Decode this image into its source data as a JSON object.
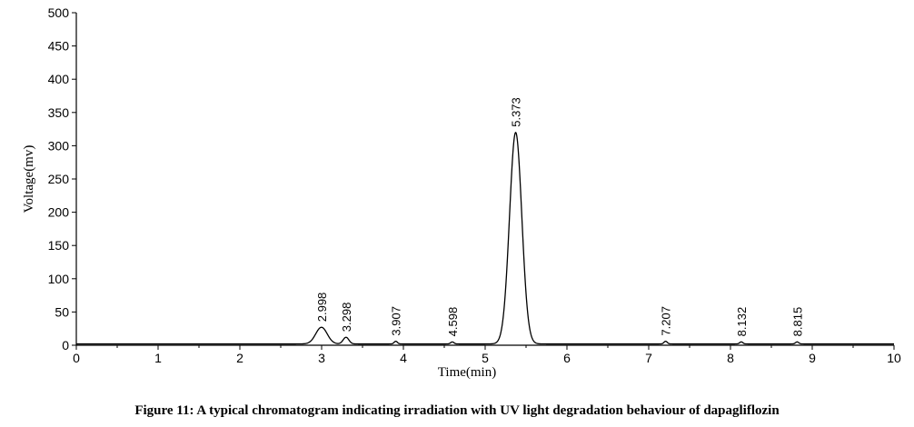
{
  "caption": "Figure 11: A typical chromatogram indicating irradiation with UV light degradation behaviour of dapagliflozin",
  "chart_data": {
    "type": "line",
    "xlabel": "Time(min)",
    "ylabel": "Voltage(mv)",
    "xlim": [
      0,
      10
    ],
    "ylim": [
      0,
      500
    ],
    "x_ticks": [
      "0",
      "1",
      "2",
      "3",
      "4",
      "5",
      "6",
      "7",
      "8",
      "9",
      "10"
    ],
    "y_ticks": [
      "0",
      "50",
      "100",
      "150",
      "200",
      "250",
      "300",
      "350",
      "400",
      "450",
      "500"
    ],
    "grid": false,
    "baseline_mv": 2,
    "peaks": [
      {
        "label": "2.998",
        "rt": 2.998,
        "height": 25,
        "width": 0.07
      },
      {
        "label": "3.298",
        "rt": 3.298,
        "height": 10,
        "width": 0.035
      },
      {
        "label": "3.907",
        "rt": 3.907,
        "height": 4,
        "width": 0.02
      },
      {
        "label": "4.598",
        "rt": 4.598,
        "height": 3,
        "width": 0.02
      },
      {
        "label": "5.373",
        "rt": 5.373,
        "height": 318,
        "width": 0.075
      },
      {
        "label": "7.207",
        "rt": 7.207,
        "height": 4,
        "width": 0.02
      },
      {
        "label": "8.132",
        "rt": 8.132,
        "height": 3,
        "width": 0.02
      },
      {
        "label": "8.815",
        "rt": 8.815,
        "height": 3,
        "width": 0.02
      }
    ]
  }
}
